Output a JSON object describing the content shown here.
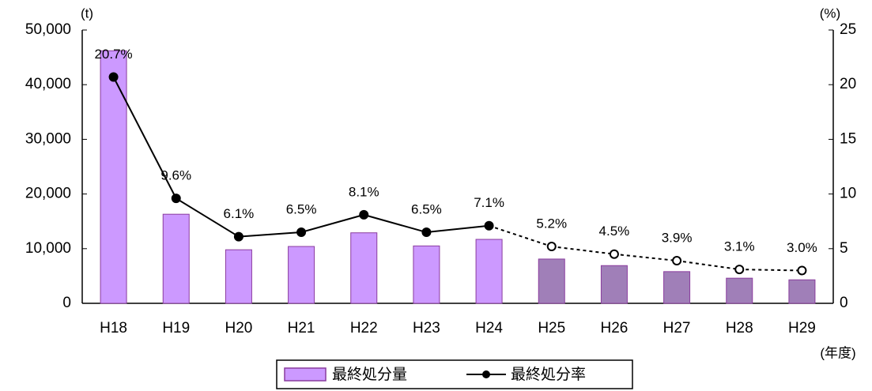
{
  "chart_data": {
    "type": "bar-line",
    "categories": [
      "H18",
      "H19",
      "H20",
      "H21",
      "H22",
      "H23",
      "H24",
      "H25",
      "H26",
      "H27",
      "H28",
      "H29"
    ],
    "y_label": "(t)",
    "y2_label": "(%)",
    "x_label": "(年度)",
    "ylim": [
      0,
      50000
    ],
    "yticks": [
      0,
      {
        "value": 10000,
        "label": "10,000"
      },
      {
        "value": 20000,
        "label": "20,000"
      },
      {
        "value": 30000,
        "label": "30,000"
      },
      {
        "value": 40000,
        "label": "40,000"
      },
      {
        "value": 50000,
        "label": "50,000"
      }
    ],
    "y2lim": [
      0,
      25
    ],
    "y2ticks": [
      0,
      5,
      10,
      15,
      20,
      25
    ],
    "series": [
      {
        "name": "最終処分量",
        "type": "bar",
        "color": "#cc99ff",
        "colors": [
          "#cc99ff",
          "#cc99ff",
          "#cc99ff",
          "#cc99ff",
          "#cc99ff",
          "#cc99ff",
          "#cc99ff",
          "#a07fb8",
          "#a07fb8",
          "#a07fb8",
          "#a07fb8",
          "#a07fb8"
        ],
        "values": [
          46200,
          16300,
          9800,
          10400,
          12900,
          10500,
          11700,
          8100,
          6900,
          5800,
          4600,
          4300
        ]
      },
      {
        "name": "最終処分率",
        "type": "line",
        "axis": "y2",
        "color": "#000000",
        "styles": [
          "solid",
          "solid",
          "solid",
          "solid",
          "solid",
          "solid",
          "solid",
          "dashed",
          "dashed",
          "dashed",
          "dashed",
          "dashed"
        ],
        "values": [
          20.7,
          9.6,
          6.1,
          6.5,
          8.1,
          6.5,
          7.1,
          5.2,
          4.5,
          3.9,
          3.1,
          3.0
        ],
        "value_labels": [
          "20.7%",
          "9.6%",
          "6.1%",
          "6.5%",
          "8.1%",
          "6.5%",
          "7.1%",
          "5.2%",
          "4.5%",
          "3.9%",
          "3.1%",
          "3.0%"
        ]
      }
    ]
  }
}
